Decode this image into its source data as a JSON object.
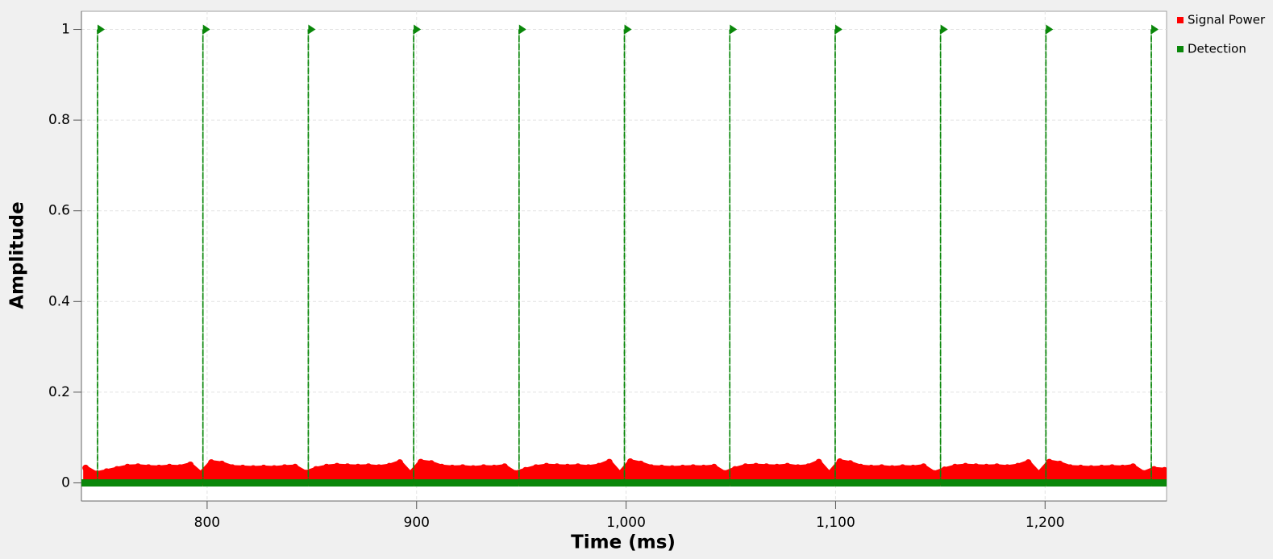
{
  "chart_data": {
    "type": "scatter",
    "x_label": "Time (ms)",
    "y_label": "Amplitude",
    "xlim": [
      740,
      1258
    ],
    "ylim": [
      -0.04,
      1.04
    ],
    "xticks": [
      800,
      900,
      {
        "value": 1000,
        "label": "1,000"
      },
      {
        "value": 1100,
        "label": "1,100"
      },
      {
        "value": 1200,
        "label": "1,200"
      }
    ],
    "yticks": [
      0,
      0.2,
      0.4,
      0.6,
      0.8,
      1
    ],
    "grid": true,
    "legend": "right",
    "series": [
      {
        "name": "Signal Power",
        "color": "#ff0000",
        "x": [
          742,
          747,
          752,
          757,
          762,
          767,
          772,
          777,
          782,
          787,
          792,
          797,
          802,
          807,
          812,
          817,
          822,
          827,
          832,
          837,
          842,
          847,
          852,
          857,
          862,
          867,
          872,
          877,
          882,
          887,
          892,
          897,
          902,
          907,
          912,
          917,
          922,
          927,
          932,
          937,
          942,
          947,
          952,
          957,
          962,
          967,
          972,
          977,
          982,
          987,
          992,
          997,
          1002,
          1007,
          1012,
          1017,
          1022,
          1027,
          1032,
          1037,
          1042,
          1047,
          1052,
          1057,
          1062,
          1067,
          1072,
          1077,
          1082,
          1087,
          1092,
          1097,
          1102,
          1107,
          1112,
          1117,
          1122,
          1127,
          1132,
          1137,
          1142,
          1147,
          1152,
          1157,
          1162,
          1167,
          1172,
          1177,
          1182,
          1187,
          1192,
          1197,
          1202,
          1207,
          1212,
          1217,
          1222,
          1227,
          1232,
          1237,
          1242,
          1247,
          1252,
          1257
        ],
        "values": [
          0.033,
          0.02,
          0.025,
          0.03,
          0.035,
          0.036,
          0.034,
          0.033,
          0.035,
          0.034,
          0.04,
          0.02,
          0.045,
          0.042,
          0.034,
          0.033,
          0.032,
          0.033,
          0.032,
          0.034,
          0.035,
          0.022,
          0.03,
          0.035,
          0.037,
          0.036,
          0.035,
          0.036,
          0.034,
          0.037,
          0.045,
          0.02,
          0.046,
          0.043,
          0.035,
          0.033,
          0.034,
          0.032,
          0.034,
          0.033,
          0.036,
          0.021,
          0.028,
          0.034,
          0.037,
          0.036,
          0.035,
          0.036,
          0.034,
          0.037,
          0.046,
          0.02,
          0.047,
          0.042,
          0.034,
          0.033,
          0.032,
          0.033,
          0.034,
          0.033,
          0.035,
          0.021,
          0.03,
          0.036,
          0.037,
          0.036,
          0.035,
          0.037,
          0.034,
          0.036,
          0.046,
          0.02,
          0.047,
          0.043,
          0.035,
          0.033,
          0.034,
          0.032,
          0.034,
          0.033,
          0.036,
          0.021,
          0.029,
          0.035,
          0.037,
          0.036,
          0.035,
          0.036,
          0.034,
          0.037,
          0.045,
          0.02,
          0.046,
          0.042,
          0.034,
          0.033,
          0.032,
          0.033,
          0.034,
          0.033,
          0.036,
          0.021,
          0.03,
          0.028
        ]
      },
      {
        "name": "Detection",
        "color": "#0a870a",
        "x": [
          740,
          747.7,
          747.7,
          747.7,
          798.0,
          798.0,
          798.0,
          848.3,
          848.3,
          848.3,
          898.6,
          898.6,
          898.6,
          948.9,
          948.9,
          948.9,
          999.2,
          999.2,
          999.2,
          1049.5,
          1049.5,
          1049.5,
          1099.8,
          1099.8,
          1099.8,
          1150.1,
          1150.1,
          1150.1,
          1200.4,
          1200.4,
          1200.4,
          1250.7,
          1250.7,
          1250.7,
          1258
        ],
        "values": [
          0,
          0,
          1,
          0,
          0,
          1,
          0,
          0,
          1,
          0,
          0,
          1,
          0,
          0,
          1,
          0,
          0,
          1,
          0,
          0,
          1,
          0,
          0,
          1,
          0,
          0,
          1,
          0,
          0,
          1,
          0,
          0,
          1,
          0,
          0
        ]
      }
    ]
  }
}
